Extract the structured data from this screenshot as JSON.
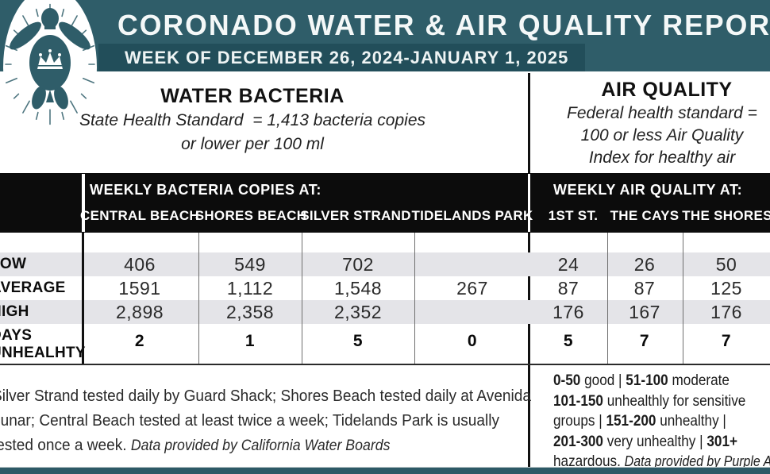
{
  "colors": {
    "teal": "#2f5d69",
    "teal_dark": "#224e5a",
    "teal_bar": "#2d5966",
    "band_black": "#0c0c0c",
    "stripe": "#e4e4e8"
  },
  "header": {
    "title": "CORONADO WATER & AIR QUALITY REPORT",
    "week": "WEEK OF DECEMBER 26, 2024-JANUARY 1, 2025",
    "logo": "crowned-sea-turtle"
  },
  "water_section": {
    "title": "WATER BACTERIA",
    "standard_lines": [
      "State Health Standard  = 1,413 bacteria copies",
      "or lower per 100 ml"
    ]
  },
  "air_section": {
    "title": "AIR QUALITY",
    "standard_lines": [
      "Federal health standard =",
      "100 or less Air Quality",
      "Index for healthy air"
    ]
  },
  "table": {
    "water_group_header": "WEEKLY BACTERIA COPIES AT:",
    "air_group_header": "WEEKLY AIR QUALITY AT:",
    "water_columns": [
      "CENTRAL BEACH",
      "SHORES BEACH",
      "SILVER STRAND",
      "TIDELANDS PARK"
    ],
    "air_columns": [
      "1ST ST.",
      "THE CAYS",
      "THE SHORES"
    ],
    "rows": [
      {
        "label": "LOW",
        "water": [
          "406",
          "549",
          "702",
          ""
        ],
        "air": [
          "24",
          "26",
          "50"
        ]
      },
      {
        "label": "AVERAGE",
        "water": [
          "1591",
          "1,112",
          "1,548",
          "267"
        ],
        "air": [
          "87",
          "87",
          "125"
        ]
      },
      {
        "label": "HIGH",
        "water": [
          "2,898",
          "2,358",
          "2,352",
          ""
        ],
        "air": [
          "176",
          "167",
          "176"
        ]
      },
      {
        "label": "DAYS UNHEALHTY",
        "water": [
          "2",
          "1",
          "5",
          "0"
        ],
        "air": [
          "5",
          "7",
          "7"
        ]
      }
    ]
  },
  "footer": {
    "water_note_lines": [
      [
        {
          "t": "Silver Strand tested daily by Guard Shack; Shores Beach tested daily at Avenida"
        }
      ],
      [
        {
          "t": "Lunar; Central Beach tested at least twice a week; Tidelands Park is usually"
        }
      ],
      [
        {
          "t": "tested once a week. "
        },
        {
          "t": "Data provided by California Water Boards",
          "i": true
        }
      ]
    ],
    "air_legend_lines": [
      [
        {
          "t": "0-50",
          "b": true
        },
        {
          "t": " good | "
        },
        {
          "t": "51-100",
          "b": true
        },
        {
          "t": " moderate"
        }
      ],
      [
        {
          "t": "101-150",
          "b": true
        },
        {
          "t": " unhealthly for sensitive"
        }
      ],
      [
        {
          "t": "groups | "
        },
        {
          "t": "151-200",
          "b": true
        },
        {
          "t": " unhealthy |"
        }
      ],
      [
        {
          "t": "201-300",
          "b": true
        },
        {
          "t": " very unhealthy | "
        },
        {
          "t": "301+",
          "b": true
        }
      ],
      [
        {
          "t": "hazardous. "
        },
        {
          "t": "Data provided by Purple Air",
          "i": true
        }
      ]
    ]
  }
}
